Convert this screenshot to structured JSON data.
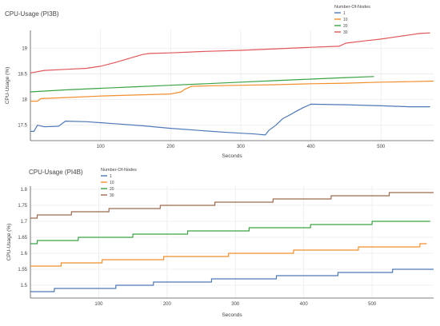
{
  "chart_data": [
    {
      "type": "line",
      "title": "CPU-Usage (PI3B)",
      "xlabel": "Seconds",
      "ylabel": "CPU-Usage (%)",
      "xlim": [
        0,
        575
      ],
      "ylim": [
        17.2,
        19.35
      ],
      "x_ticks": [
        100,
        200,
        300,
        400,
        500
      ],
      "y_ticks": [
        17.5,
        18,
        18.5,
        19
      ],
      "grid": true,
      "legend": {
        "title": "Number-Of-Nodes",
        "position": "top-right"
      },
      "series": [
        {
          "name": "1",
          "color": "#4e79b7",
          "x": [
            0,
            5,
            10,
            20,
            40,
            50,
            80,
            120,
            160,
            200,
            240,
            280,
            320,
            335,
            340,
            350,
            360,
            370,
            380,
            390,
            400,
            450,
            500,
            540,
            570
          ],
          "y": [
            17.38,
            17.38,
            17.5,
            17.47,
            17.48,
            17.58,
            17.57,
            17.53,
            17.49,
            17.44,
            17.4,
            17.36,
            17.33,
            17.31,
            17.4,
            17.5,
            17.63,
            17.7,
            17.78,
            17.85,
            17.91,
            17.9,
            17.88,
            17.86,
            17.86
          ]
        },
        {
          "name": "10",
          "color": "#f28e2b",
          "x": [
            0,
            10,
            15,
            50,
            100,
            150,
            200,
            215,
            220,
            230,
            260,
            300,
            350,
            400,
            450,
            500,
            540,
            575
          ],
          "y": [
            17.97,
            17.97,
            18.02,
            18.04,
            18.07,
            18.09,
            18.11,
            18.15,
            18.2,
            18.26,
            18.27,
            18.28,
            18.29,
            18.31,
            18.32,
            18.34,
            18.35,
            18.36
          ]
        },
        {
          "name": "20",
          "color": "#3aa345",
          "x": [
            0,
            50,
            100,
            150,
            200,
            250,
            300,
            350,
            400,
            450,
            490
          ],
          "y": [
            18.15,
            18.19,
            18.22,
            18.25,
            18.28,
            18.31,
            18.34,
            18.37,
            18.4,
            18.43,
            18.45
          ]
        },
        {
          "name": "30",
          "color": "#e15759",
          "x": [
            0,
            20,
            50,
            80,
            100,
            120,
            140,
            160,
            170,
            200,
            250,
            300,
            350,
            400,
            440,
            450,
            480,
            500,
            520,
            540,
            555,
            570
          ],
          "y": [
            18.52,
            18.57,
            18.59,
            18.61,
            18.65,
            18.72,
            18.8,
            18.88,
            18.9,
            18.91,
            18.94,
            18.96,
            18.99,
            19.02,
            19.04,
            19.1,
            19.15,
            19.18,
            19.22,
            19.26,
            19.29,
            19.3
          ]
        }
      ]
    },
    {
      "type": "line",
      "title": "CPU-Usage (PI4B)",
      "xlabel": "Seconds",
      "ylabel": "CPU-Usage (%)",
      "xlim": [
        0,
        590
      ],
      "ylim": [
        1.46,
        1.81
      ],
      "x_ticks": [
        100,
        200,
        300,
        400,
        500
      ],
      "y_ticks": [
        1.5,
        1.55,
        1.6,
        1.65,
        1.7,
        1.75,
        1.8
      ],
      "grid": true,
      "legend": {
        "title": "Number-Of-Nodes",
        "position": "top-left"
      },
      "series": [
        {
          "name": "1",
          "color": "#4e79b7",
          "x": [
            0,
            35,
            35,
            125,
            125,
            180,
            180,
            265,
            265,
            360,
            360,
            450,
            450,
            530,
            530,
            590
          ],
          "y": [
            1.48,
            1.48,
            1.49,
            1.49,
            1.5,
            1.5,
            1.51,
            1.51,
            1.52,
            1.52,
            1.53,
            1.53,
            1.54,
            1.54,
            1.55,
            1.55
          ]
        },
        {
          "name": "10",
          "color": "#f28e2b",
          "x": [
            0,
            45,
            45,
            105,
            105,
            195,
            195,
            290,
            290,
            385,
            385,
            480,
            480,
            570,
            570,
            580
          ],
          "y": [
            1.56,
            1.56,
            1.57,
            1.57,
            1.58,
            1.58,
            1.59,
            1.59,
            1.6,
            1.6,
            1.61,
            1.61,
            1.62,
            1.62,
            1.63,
            1.63
          ]
        },
        {
          "name": "20",
          "color": "#3aa345",
          "x": [
            0,
            10,
            10,
            70,
            70,
            150,
            150,
            230,
            230,
            320,
            320,
            410,
            410,
            500,
            500,
            585
          ],
          "y": [
            1.63,
            1.63,
            1.64,
            1.64,
            1.65,
            1.65,
            1.66,
            1.66,
            1.67,
            1.67,
            1.68,
            1.68,
            1.69,
            1.69,
            1.7,
            1.7
          ]
        },
        {
          "name": "30",
          "color": "#9c6b4e",
          "x": [
            0,
            10,
            10,
            60,
            60,
            115,
            115,
            190,
            190,
            270,
            270,
            355,
            355,
            440,
            440,
            525,
            525,
            590
          ],
          "y": [
            1.71,
            1.71,
            1.72,
            1.72,
            1.73,
            1.73,
            1.74,
            1.74,
            1.75,
            1.75,
            1.76,
            1.76,
            1.77,
            1.77,
            1.78,
            1.78,
            1.79,
            1.79
          ]
        }
      ]
    }
  ]
}
